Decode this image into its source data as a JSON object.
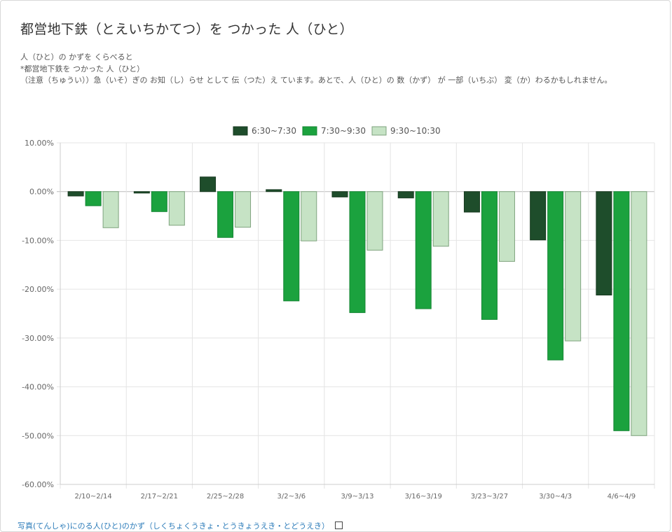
{
  "page": {
    "title": "都営地下鉄（とえいちかてつ）を つかった 人（ひと）",
    "description": [
      "人（ひと）の かずを くらべると",
      "*都営地下鉄を つかった 人（ひと）",
      "（注意（ちゅうい））急（いそ）ぎの お知（し）らせ として 伝（つた）え ています。あとで、人（ひと）の 数（かず） が 一部（いちぶ） 変（か）わるかもしれません。"
    ],
    "footer_link": "写真(てんしゃ)にのる人(ひと)のかず（しくちょくうきょ・とうきょうえき・とどうえき）"
  },
  "colors": {
    "series1": "#1e4d2b",
    "series2": "#1ba23e",
    "series3": "#c6e3c5",
    "grid": "#e4e4e4",
    "axis": "#999999"
  },
  "chart_data": {
    "type": "bar",
    "title": "",
    "xlabel": "",
    "ylabel": "",
    "ylim": [
      -60,
      10
    ],
    "y_ticks": [
      10,
      0,
      -10,
      -20,
      -30,
      -40,
      -50,
      -60
    ],
    "y_tick_labels": [
      "10.00%",
      "0.00%",
      "-10.00%",
      "-20.00%",
      "-30.00%",
      "-40.00%",
      "-50.00%",
      "-60.00%"
    ],
    "grid": true,
    "legend_position": "top-center",
    "categories": [
      "2/10~2/14",
      "2/17~2/21",
      "2/25~2/28",
      "3/2~3/6",
      "3/9~3/13",
      "3/16~3/19",
      "3/23~3/27",
      "3/30~4/3",
      "4/6~4/9"
    ],
    "series": [
      {
        "name": "6:30~7:30",
        "values": [
          -0.9,
          -0.3,
          3.0,
          0.4,
          -1.1,
          -1.3,
          -4.2,
          -9.9,
          -21.2
        ]
      },
      {
        "name": "7:30~9:30",
        "values": [
          -2.9,
          -4.1,
          -9.4,
          -22.4,
          -24.8,
          -24.0,
          -26.2,
          -34.5,
          -49.0
        ]
      },
      {
        "name": "9:30~10:30",
        "values": [
          -7.4,
          -6.9,
          -7.3,
          -10.1,
          -12.0,
          -11.2,
          -14.3,
          -30.6,
          -50.0
        ]
      }
    ]
  }
}
